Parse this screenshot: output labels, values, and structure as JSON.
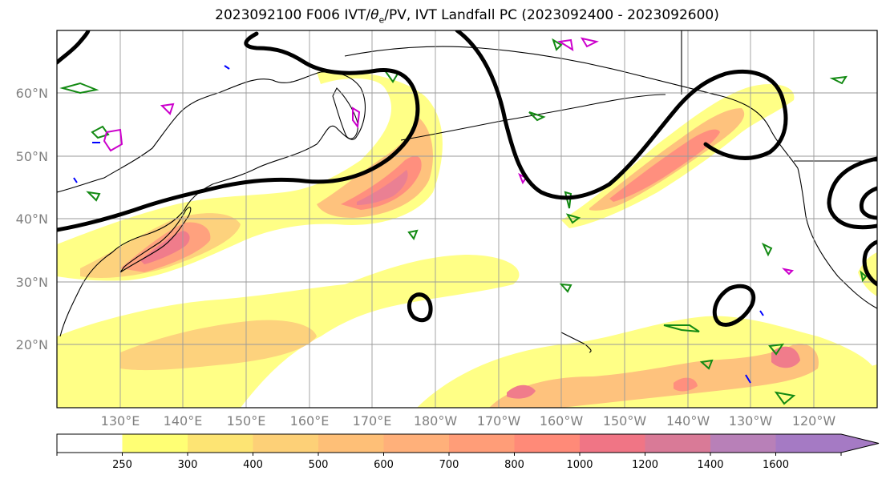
{
  "title": {
    "before": "2023092100 F006 IVT/",
    "theta": "θ",
    "theta_sub": "e",
    "after": "/PV, IVT Landfall PC (2023092400 - 2023092600)"
  },
  "map": {
    "projection": "cylindrical",
    "lon_range": [
      120,
      -110
    ],
    "lat_range": [
      10,
      70
    ],
    "lat_labels": [
      "20°N",
      "30°N",
      "40°N",
      "50°N",
      "60°N"
    ],
    "lon_labels": [
      "130°E",
      "140°E",
      "150°E",
      "160°E",
      "170°E",
      "180°W",
      "170°W",
      "160°W",
      "150°W",
      "140°W",
      "130°W",
      "120°W"
    ],
    "gridlines": true
  },
  "colorbar": {
    "tick_labels": [
      "250",
      "300",
      "400",
      "500",
      "600",
      "700",
      "800",
      "1000",
      "1200",
      "1400",
      "1600"
    ],
    "colors": [
      "#ffffff",
      "#ffff74",
      "#fde473",
      "#fdd077",
      "#febf77",
      "#ffb07a",
      "#ff9d78",
      "#ff8a78",
      "#f07585",
      "#d97a97",
      "#b880b8",
      "#a57ac4"
    ],
    "extend": "max"
  },
  "layers": {
    "ivt_fill": "IVT shading",
    "pv_contour_color": "#000000",
    "theta_e_positive_color": "#138a13",
    "theta_e_negative_color": "#0000ff",
    "landfall_pc_color": "#cc00cc"
  }
}
